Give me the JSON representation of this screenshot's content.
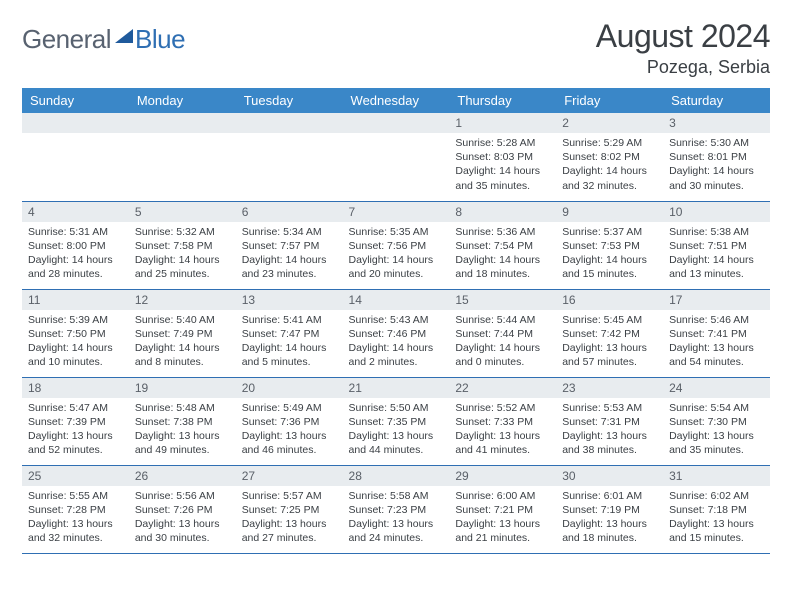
{
  "brand": {
    "part1": "General",
    "part2": "Blue"
  },
  "header": {
    "title": "August 2024",
    "location": "Pozega, Serbia"
  },
  "colors": {
    "header_bg": "#3a87c8",
    "header_text": "#ffffff",
    "daynum_bg": "#e8ecef",
    "border": "#2f6fb3",
    "text": "#3a3f44",
    "logo_gray": "#586270",
    "logo_blue": "#2f6fb3"
  },
  "dow": [
    "Sunday",
    "Monday",
    "Tuesday",
    "Wednesday",
    "Thursday",
    "Friday",
    "Saturday"
  ],
  "weeks": [
    [
      {
        "n": "",
        "empty": true
      },
      {
        "n": "",
        "empty": true
      },
      {
        "n": "",
        "empty": true
      },
      {
        "n": "",
        "empty": true
      },
      {
        "n": "1",
        "sr": "5:28 AM",
        "ss": "8:03 PM",
        "dl": "14 hours and 35 minutes."
      },
      {
        "n": "2",
        "sr": "5:29 AM",
        "ss": "8:02 PM",
        "dl": "14 hours and 32 minutes."
      },
      {
        "n": "3",
        "sr": "5:30 AM",
        "ss": "8:01 PM",
        "dl": "14 hours and 30 minutes."
      }
    ],
    [
      {
        "n": "4",
        "sr": "5:31 AM",
        "ss": "8:00 PM",
        "dl": "14 hours and 28 minutes."
      },
      {
        "n": "5",
        "sr": "5:32 AM",
        "ss": "7:58 PM",
        "dl": "14 hours and 25 minutes."
      },
      {
        "n": "6",
        "sr": "5:34 AM",
        "ss": "7:57 PM",
        "dl": "14 hours and 23 minutes."
      },
      {
        "n": "7",
        "sr": "5:35 AM",
        "ss": "7:56 PM",
        "dl": "14 hours and 20 minutes."
      },
      {
        "n": "8",
        "sr": "5:36 AM",
        "ss": "7:54 PM",
        "dl": "14 hours and 18 minutes."
      },
      {
        "n": "9",
        "sr": "5:37 AM",
        "ss": "7:53 PM",
        "dl": "14 hours and 15 minutes."
      },
      {
        "n": "10",
        "sr": "5:38 AM",
        "ss": "7:51 PM",
        "dl": "14 hours and 13 minutes."
      }
    ],
    [
      {
        "n": "11",
        "sr": "5:39 AM",
        "ss": "7:50 PM",
        "dl": "14 hours and 10 minutes."
      },
      {
        "n": "12",
        "sr": "5:40 AM",
        "ss": "7:49 PM",
        "dl": "14 hours and 8 minutes."
      },
      {
        "n": "13",
        "sr": "5:41 AM",
        "ss": "7:47 PM",
        "dl": "14 hours and 5 minutes."
      },
      {
        "n": "14",
        "sr": "5:43 AM",
        "ss": "7:46 PM",
        "dl": "14 hours and 2 minutes."
      },
      {
        "n": "15",
        "sr": "5:44 AM",
        "ss": "7:44 PM",
        "dl": "14 hours and 0 minutes."
      },
      {
        "n": "16",
        "sr": "5:45 AM",
        "ss": "7:42 PM",
        "dl": "13 hours and 57 minutes."
      },
      {
        "n": "17",
        "sr": "5:46 AM",
        "ss": "7:41 PM",
        "dl": "13 hours and 54 minutes."
      }
    ],
    [
      {
        "n": "18",
        "sr": "5:47 AM",
        "ss": "7:39 PM",
        "dl": "13 hours and 52 minutes."
      },
      {
        "n": "19",
        "sr": "5:48 AM",
        "ss": "7:38 PM",
        "dl": "13 hours and 49 minutes."
      },
      {
        "n": "20",
        "sr": "5:49 AM",
        "ss": "7:36 PM",
        "dl": "13 hours and 46 minutes."
      },
      {
        "n": "21",
        "sr": "5:50 AM",
        "ss": "7:35 PM",
        "dl": "13 hours and 44 minutes."
      },
      {
        "n": "22",
        "sr": "5:52 AM",
        "ss": "7:33 PM",
        "dl": "13 hours and 41 minutes."
      },
      {
        "n": "23",
        "sr": "5:53 AM",
        "ss": "7:31 PM",
        "dl": "13 hours and 38 minutes."
      },
      {
        "n": "24",
        "sr": "5:54 AM",
        "ss": "7:30 PM",
        "dl": "13 hours and 35 minutes."
      }
    ],
    [
      {
        "n": "25",
        "sr": "5:55 AM",
        "ss": "7:28 PM",
        "dl": "13 hours and 32 minutes."
      },
      {
        "n": "26",
        "sr": "5:56 AM",
        "ss": "7:26 PM",
        "dl": "13 hours and 30 minutes."
      },
      {
        "n": "27",
        "sr": "5:57 AM",
        "ss": "7:25 PM",
        "dl": "13 hours and 27 minutes."
      },
      {
        "n": "28",
        "sr": "5:58 AM",
        "ss": "7:23 PM",
        "dl": "13 hours and 24 minutes."
      },
      {
        "n": "29",
        "sr": "6:00 AM",
        "ss": "7:21 PM",
        "dl": "13 hours and 21 minutes."
      },
      {
        "n": "30",
        "sr": "6:01 AM",
        "ss": "7:19 PM",
        "dl": "13 hours and 18 minutes."
      },
      {
        "n": "31",
        "sr": "6:02 AM",
        "ss": "7:18 PM",
        "dl": "13 hours and 15 minutes."
      }
    ]
  ],
  "labels": {
    "sunrise": "Sunrise:",
    "sunset": "Sunset:",
    "daylight": "Daylight:"
  }
}
